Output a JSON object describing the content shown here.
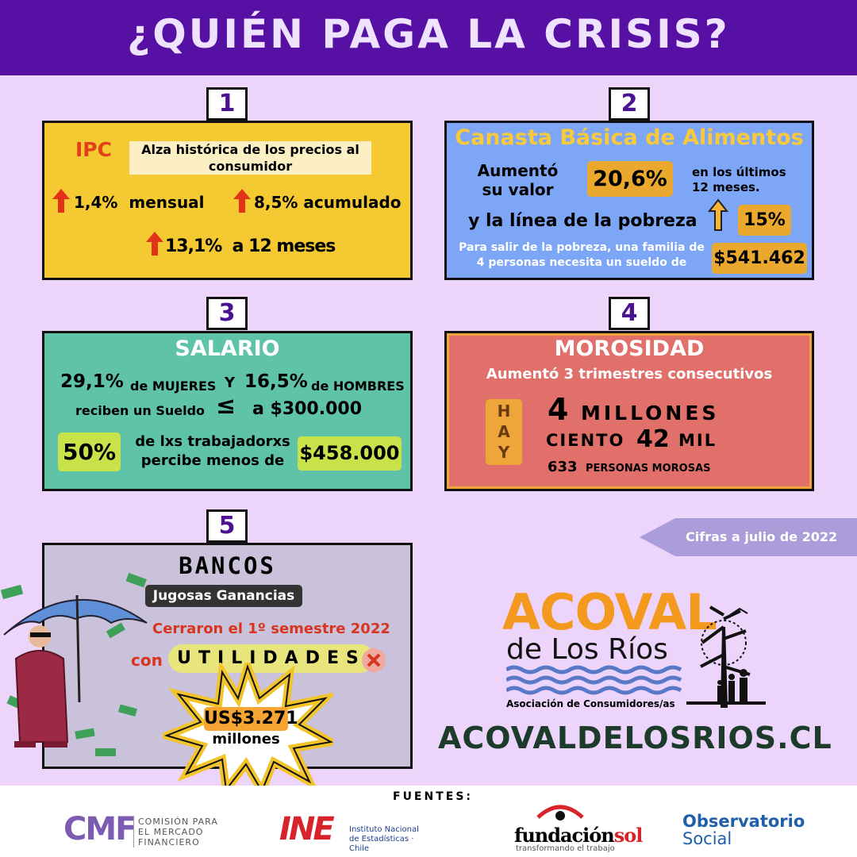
{
  "header": {
    "title": "¿QUIÉN PAGA LA CRISIS?"
  },
  "panels": [
    {
      "number": "1",
      "label": "IPC",
      "description": "Alza histórica de los precios al consumidor",
      "monthly": "1,4%  mensual",
      "accumulated": "8,5% acumulado",
      "annual": "13,1%  a 12 meses"
    },
    {
      "number": "2",
      "title": "Canasta Básica de Alimentos",
      "increase_label": "Aumentó su valor",
      "increase_value": "20,6%",
      "period": "en los últimos 12 meses.",
      "poverty_line": "y la línea de la pobreza",
      "poverty_value": "15%",
      "salary_note": "Para salir de la pobreza, una familia de 4 personas necesita un sueldo de",
      "salary_value": "$541.462"
    },
    {
      "number": "3",
      "title": "SALARIO",
      "women_value": "29,1%",
      "women_label": "de MUJERES",
      "conjunction": "Y",
      "men_value": "16,5%",
      "men_label": "de HOMBRES",
      "receive": "reciben un Sueldo",
      "symbol": "≤",
      "threshold": "a $300.000",
      "half_value": "50%",
      "half_label": "de lxs trabajadorxs percibe menos de",
      "half_threshold": "$458.000"
    },
    {
      "number": "4",
      "title": "MOROSIDAD",
      "subtitle": "Aumentó 3 trimestres consecutivos",
      "hay": "HAY",
      "millions_value": "4",
      "millions_label": "MILLONES",
      "hundred_label": "CIENTO",
      "thousands_value": "42",
      "thousands_label": "MIL",
      "units_value": "633",
      "units_label": "PERSONAS MOROSAS"
    },
    {
      "number": "5",
      "title": "BANCOS",
      "subtitle": "Jugosas Ganancias",
      "closed": "Cerraron el 1º semestre 2022",
      "with": "con",
      "profits": "UTILIDADES",
      "amount": "US$3.271",
      "amount_unit": "millones"
    }
  ],
  "note": "Cifras a julio de 2022",
  "logo": {
    "name": "ACOVAL",
    "place": "de Los Ríos",
    "tagline": "Asociación de Consumidores/as"
  },
  "website": "ACOVALDELOSRIOS.CL",
  "footer": {
    "label": "FUENTES:",
    "sources": [
      {
        "mark": "CMF",
        "name": "COMISIÓN PARA EL MERCADO FINANCIERO"
      },
      {
        "mark": "INE",
        "name": "Instituto Nacional de Estadísticas · Chile"
      },
      {
        "mark": "fundación",
        "mark_accent": "sol",
        "name": "transformando el trabajo"
      },
      {
        "mark": "Observatorio",
        "name": "Social"
      }
    ]
  }
}
